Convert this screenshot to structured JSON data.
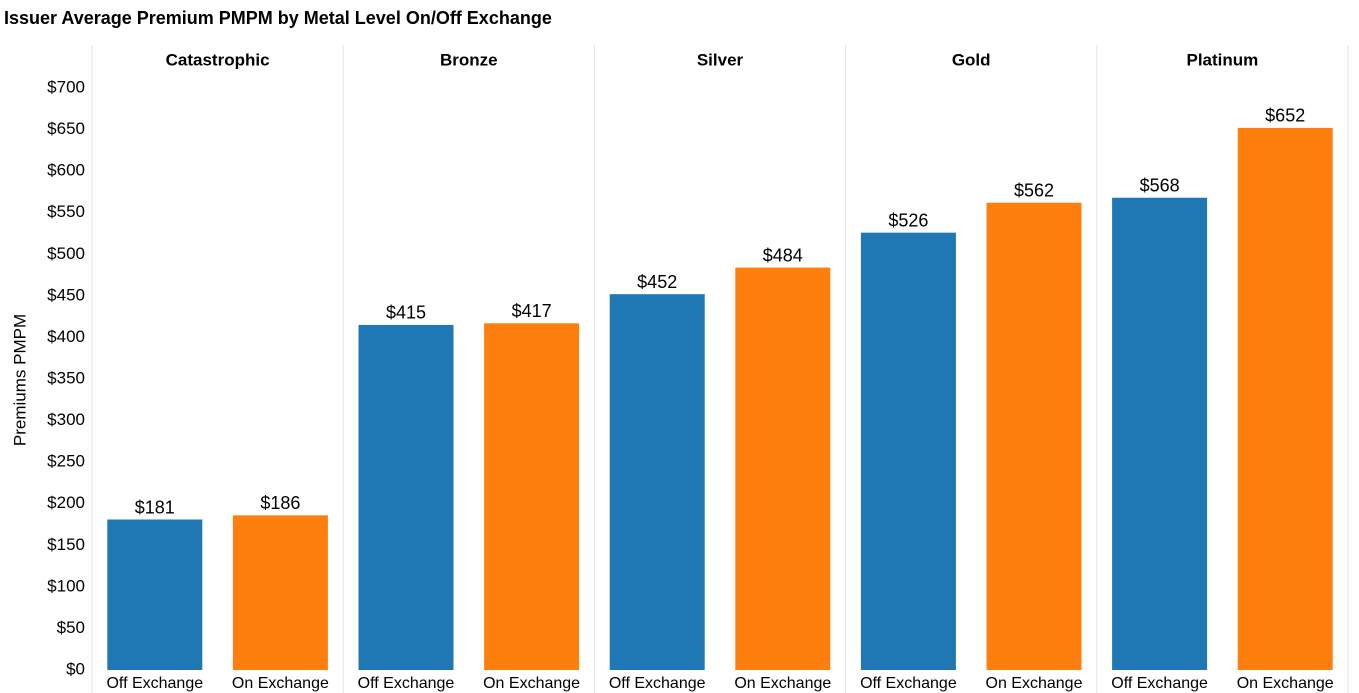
{
  "chart_data": {
    "type": "bar",
    "title": "Issuer Average Premium PMPM by Metal Level On/Off Exchange",
    "y_label": "Premiums PMPM",
    "categories": [
      "Catastrophic",
      "Bronze",
      "Silver",
      "Gold",
      "Platinum"
    ],
    "series": [
      {
        "name": "Off Exchange",
        "color": "#1f77b4",
        "values": [
          181,
          415,
          452,
          526,
          568
        ],
        "value_labels": [
          "$181",
          "$415",
          "$452",
          "$526",
          "$568"
        ]
      },
      {
        "name": "On Exchange",
        "color": "#ff7f0e",
        "values": [
          186,
          417,
          484,
          562,
          652
        ],
        "value_labels": [
          "$186",
          "$417",
          "$484",
          "$562",
          "$652"
        ]
      }
    ],
    "ylim": [
      0,
      700
    ],
    "yticks": [
      {
        "value": 0,
        "label": "$0"
      },
      {
        "value": 50,
        "label": "$50"
      },
      {
        "value": 100,
        "label": "$100"
      },
      {
        "value": 150,
        "label": "$150"
      },
      {
        "value": 200,
        "label": "$200"
      },
      {
        "value": 250,
        "label": "$250"
      },
      {
        "value": 300,
        "label": "$300"
      },
      {
        "value": 350,
        "label": "$350"
      },
      {
        "value": 400,
        "label": "$400"
      },
      {
        "value": 450,
        "label": "$450"
      },
      {
        "value": 500,
        "label": "$500"
      },
      {
        "value": 550,
        "label": "$550"
      },
      {
        "value": 600,
        "label": "$600"
      },
      {
        "value": 650,
        "label": "$650"
      },
      {
        "value": 700,
        "label": "$700"
      }
    ],
    "grid": false
  }
}
